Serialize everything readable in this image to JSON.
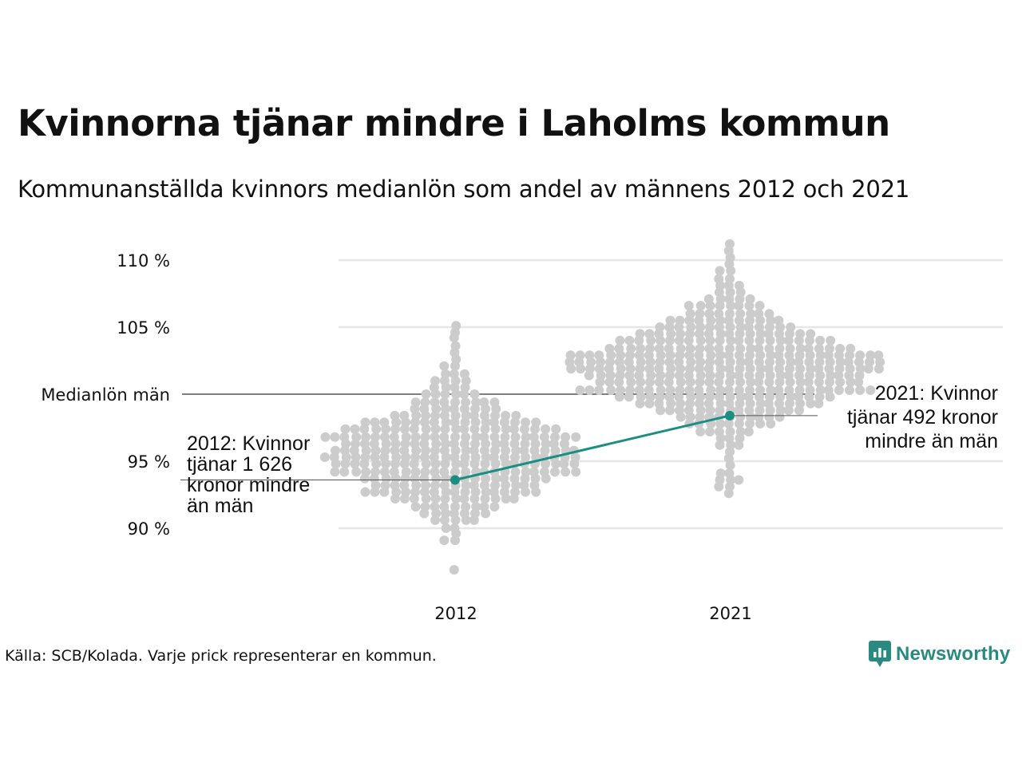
{
  "title": "Kvinnorna tjänar mindre i Laholms kommun",
  "subtitle": "Kommunanställda kvinnors medianlön som andel av männens 2012 och 2021",
  "source": "Källa: SCB/Kolada. Varje prick representerar en kommun.",
  "brand": {
    "name": "Newsworthy",
    "icon": "newsworthy-logo-icon"
  },
  "colors": {
    "dots": "#cccccc",
    "highlight": "#1a8f81",
    "grid": "#e6e6e6",
    "reference": "#333333"
  },
  "chart_data": {
    "type": "scatter",
    "title": "Kvinnorna tjänar mindre i Laholms kommun",
    "xlabel": "",
    "ylabel": "",
    "categories": [
      "2012",
      "2021"
    ],
    "ylim": [
      86,
      112
    ],
    "y_ticks": [
      {
        "value": 90,
        "label": "90 %"
      },
      {
        "value": 95,
        "label": "95 %"
      },
      {
        "value": 105,
        "label": "105 %"
      },
      {
        "value": 110,
        "label": "110 %"
      }
    ],
    "reference_line": {
      "value": 100,
      "label": "Medianlön män"
    },
    "grid": true,
    "series": [
      {
        "distribution": [
          {
            "y": 86.9,
            "n": 1
          },
          {
            "y": 89.1,
            "n": 2
          },
          {
            "y": 89.6,
            "n": 1
          },
          {
            "y": 90.0,
            "n": 2
          },
          {
            "y": 90.6,
            "n": 5
          },
          {
            "y": 91.1,
            "n": 7
          },
          {
            "y": 91.6,
            "n": 9
          },
          {
            "y": 92.2,
            "n": 13
          },
          {
            "y": 92.7,
            "n": 18
          },
          {
            "y": 93.2,
            "n": 17
          },
          {
            "y": 93.7,
            "n": 19
          },
          {
            "y": 94.2,
            "n": 25
          },
          {
            "y": 94.8,
            "n": 25
          },
          {
            "y": 95.3,
            "n": 26
          },
          {
            "y": 95.8,
            "n": 25
          },
          {
            "y": 96.3,
            "n": 23
          },
          {
            "y": 96.8,
            "n": 26
          },
          {
            "y": 97.4,
            "n": 22
          },
          {
            "y": 97.9,
            "n": 18
          },
          {
            "y": 98.4,
            "n": 13
          },
          {
            "y": 98.9,
            "n": 9
          },
          {
            "y": 99.4,
            "n": 9
          },
          {
            "y": 100.0,
            "n": 6
          },
          {
            "y": 100.5,
            "n": 4
          },
          {
            "y": 101.0,
            "n": 4
          },
          {
            "y": 101.5,
            "n": 3
          },
          {
            "y": 102.1,
            "n": 2
          },
          {
            "y": 102.6,
            "n": 1
          },
          {
            "y": 103.1,
            "n": 1
          },
          {
            "y": 103.6,
            "n": 1
          },
          {
            "y": 104.2,
            "n": 1
          },
          {
            "y": 104.6,
            "n": 1
          },
          {
            "y": 105.1,
            "n": 1
          }
        ]
      },
      {
        "distribution": [
          {
            "y": 92.6,
            "n": 1
          },
          {
            "y": 93.1,
            "n": 2
          },
          {
            "y": 93.6,
            "n": 3
          },
          {
            "y": 94.1,
            "n": 2
          },
          {
            "y": 94.7,
            "n": 1
          },
          {
            "y": 95.2,
            "n": 1
          },
          {
            "y": 95.7,
            "n": 1
          },
          {
            "y": 96.2,
            "n": 3
          },
          {
            "y": 96.7,
            "n": 3
          },
          {
            "y": 97.2,
            "n": 6
          },
          {
            "y": 97.8,
            "n": 9
          },
          {
            "y": 98.3,
            "n": 11
          },
          {
            "y": 98.8,
            "n": 15
          },
          {
            "y": 99.3,
            "n": 19
          },
          {
            "y": 99.8,
            "n": 22
          },
          {
            "y": 100.3,
            "n": 30
          },
          {
            "y": 100.9,
            "n": 27
          },
          {
            "y": 101.4,
            "n": 28
          },
          {
            "y": 101.9,
            "n": 32
          },
          {
            "y": 102.4,
            "n": 32
          },
          {
            "y": 102.9,
            "n": 32
          },
          {
            "y": 103.4,
            "n": 25
          },
          {
            "y": 104.0,
            "n": 22
          },
          {
            "y": 104.5,
            "n": 18
          },
          {
            "y": 105.0,
            "n": 14
          },
          {
            "y": 105.5,
            "n": 12
          },
          {
            "y": 106.0,
            "n": 9
          },
          {
            "y": 106.6,
            "n": 8
          },
          {
            "y": 107.1,
            "n": 5
          },
          {
            "y": 107.6,
            "n": 3
          },
          {
            "y": 108.1,
            "n": 3
          },
          {
            "y": 108.6,
            "n": 2
          },
          {
            "y": 109.2,
            "n": 2
          },
          {
            "y": 109.7,
            "n": 1
          },
          {
            "y": 110.2,
            "n": 1
          },
          {
            "y": 110.7,
            "n": 1
          },
          {
            "y": 111.2,
            "n": 1
          }
        ]
      }
    ],
    "highlight": {
      "name": "Laholms kommun",
      "points": [
        {
          "x": "2012",
          "y": 93.6
        },
        {
          "x": "2021",
          "y": 98.4
        }
      ]
    },
    "annotations": [
      {
        "x": "2012",
        "lines": [
          "2012: Kvinnor",
          "tjänar 1 626",
          "kronor mindre",
          "än män"
        ]
      },
      {
        "x": "2021",
        "lines": [
          "2021: Kvinnor",
          "tjänar 492 kronor",
          "mindre än män"
        ]
      }
    ]
  }
}
